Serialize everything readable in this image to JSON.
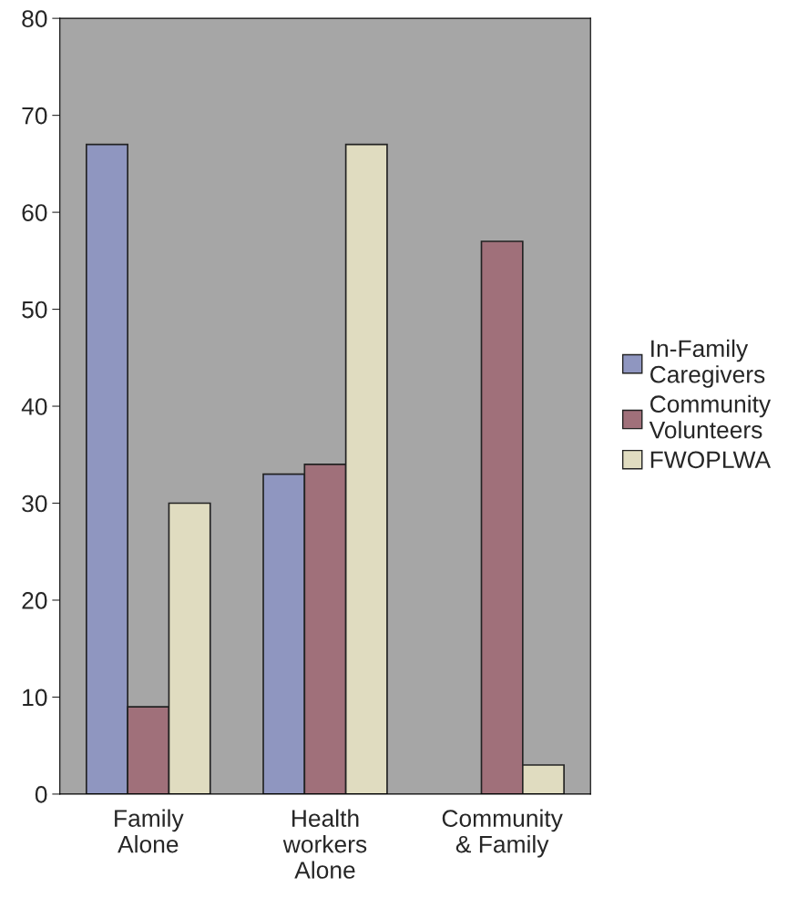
{
  "chart_data": {
    "type": "bar",
    "categories": [
      "Family\nAlone",
      "Health\nworkers\nAlone",
      "Community\n& Family"
    ],
    "series": [
      {
        "name": "In-Family\nCaregivers",
        "color": "#8f96c0",
        "values": [
          67,
          33,
          null
        ]
      },
      {
        "name": "Community\nVolunteers",
        "color": "#a0707a",
        "values": [
          9,
          34,
          57
        ]
      },
      {
        "name": "FWOPLWA",
        "color": "#e0dcc0",
        "values": [
          30,
          67,
          3
        ]
      }
    ],
    "ylim": [
      0,
      80
    ],
    "yticks": [
      0,
      10,
      20,
      30,
      40,
      50,
      60,
      70,
      80
    ],
    "grid": false,
    "legend": "right"
  }
}
